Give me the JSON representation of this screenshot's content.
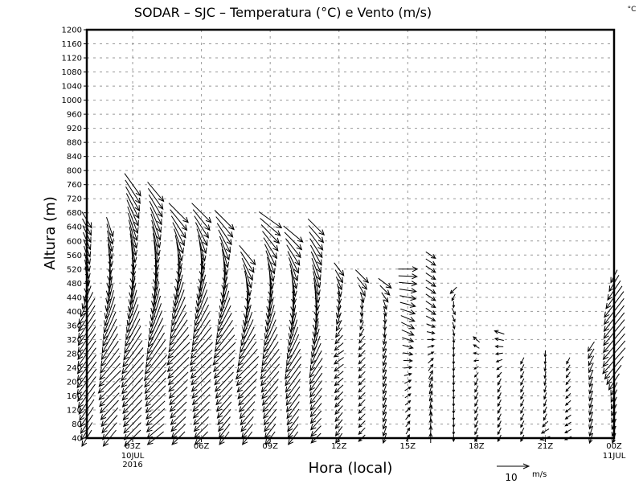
{
  "chart_data": {
    "type": "vector",
    "title": "SODAR – SJC – Temperatura (°C) e Vento (m/s)",
    "unit_label": "°C",
    "xlabel": "Hora (local)",
    "ylabel": "Altura (m)",
    "xlim_hours": [
      1,
      24
    ],
    "ylim": [
      40,
      1200
    ],
    "grid": true,
    "yticks": [
      40,
      80,
      120,
      160,
      200,
      240,
      280,
      320,
      360,
      400,
      440,
      480,
      520,
      560,
      600,
      640,
      680,
      720,
      760,
      800,
      840,
      880,
      920,
      960,
      1000,
      1040,
      1080,
      1120,
      1160,
      1200
    ],
    "xticks": [
      {
        "hour": 3,
        "label": "03Z",
        "sub1": "10JUL",
        "sub2": "2016"
      },
      {
        "hour": 6,
        "label": "06Z"
      },
      {
        "hour": 9,
        "label": "09Z"
      },
      {
        "hour": 12,
        "label": "12Z"
      },
      {
        "hour": 15,
        "label": "15Z"
      },
      {
        "hour": 18,
        "label": "18Z"
      },
      {
        "hour": 21,
        "label": "21Z"
      },
      {
        "hour": 24,
        "label": "00Z",
        "sub1": "11JUL"
      }
    ],
    "legend": {
      "value": "10",
      "unit": "m/s",
      "reference_speed": 10
    },
    "level_step_m": 20,
    "columns": [
      {
        "hour": 1,
        "top": 660,
        "profile": [
          [
            40,
            -3,
            -5
          ],
          [
            200,
            -6,
            -8
          ],
          [
            400,
            -5,
            -8
          ],
          [
            500,
            1,
            -6
          ],
          [
            660,
            3,
            -5
          ]
        ]
      },
      {
        "hour": 2,
        "top": 640,
        "profile": [
          [
            40,
            -4,
            -5
          ],
          [
            200,
            -7,
            -7
          ],
          [
            400,
            -3,
            -9
          ],
          [
            560,
            1,
            -7
          ],
          [
            640,
            2,
            -6
          ]
        ]
      },
      {
        "hour": 3,
        "top": 760,
        "profile": [
          [
            40,
            -5,
            -5
          ],
          [
            240,
            -7,
            -8
          ],
          [
            440,
            -2,
            -9
          ],
          [
            600,
            2,
            -9
          ],
          [
            760,
            5,
            -7
          ]
        ]
      },
      {
        "hour": 4,
        "top": 740,
        "profile": [
          [
            40,
            -5,
            -4
          ],
          [
            240,
            -7,
            -8
          ],
          [
            440,
            -2,
            -10
          ],
          [
            600,
            2,
            -9
          ],
          [
            740,
            5,
            -6
          ]
        ]
      },
      {
        "hour": 5,
        "top": 680,
        "profile": [
          [
            40,
            -4,
            -4
          ],
          [
            280,
            -7,
            -7
          ],
          [
            480,
            -2,
            -10
          ],
          [
            680,
            6,
            -6
          ]
        ]
      },
      {
        "hour": 6,
        "top": 680,
        "profile": [
          [
            40,
            -4,
            -4
          ],
          [
            280,
            -7,
            -7
          ],
          [
            480,
            -2,
            -10
          ],
          [
            680,
            6,
            -6
          ]
        ]
      },
      {
        "hour": 7,
        "top": 660,
        "profile": [
          [
            40,
            -3,
            -4
          ],
          [
            280,
            -7,
            -7
          ],
          [
            480,
            -1,
            -9
          ],
          [
            660,
            6,
            -6
          ]
        ]
      },
      {
        "hour": 8,
        "top": 560,
        "profile": [
          [
            40,
            -3,
            -4
          ],
          [
            240,
            -7,
            -7
          ],
          [
            420,
            -1,
            -9
          ],
          [
            560,
            5,
            -6
          ]
        ]
      },
      {
        "hour": 9,
        "top": 660,
        "profile": [
          [
            40,
            -3,
            -4
          ],
          [
            240,
            -6,
            -7
          ],
          [
            440,
            -1,
            -9
          ],
          [
            660,
            7,
            -5
          ]
        ]
      },
      {
        "hour": 10,
        "top": 620,
        "profile": [
          [
            40,
            -3,
            -4
          ],
          [
            240,
            -5,
            -7
          ],
          [
            440,
            0,
            -9
          ],
          [
            620,
            6,
            -5
          ]
        ]
      },
      {
        "hour": 11,
        "top": 640,
        "profile": [
          [
            40,
            -3,
            -3
          ],
          [
            240,
            -4,
            -6
          ],
          [
            440,
            1,
            -8
          ],
          [
            640,
            5,
            -5
          ]
        ]
      },
      {
        "hour": 12,
        "top": 520,
        "profile": [
          [
            40,
            -2,
            -3
          ],
          [
            280,
            -3,
            -2
          ],
          [
            400,
            -1,
            -4
          ],
          [
            520,
            3,
            -4
          ]
        ]
      },
      {
        "hour": 13,
        "top": 500,
        "profile": [
          [
            40,
            -2,
            -2
          ],
          [
            300,
            -2,
            -2
          ],
          [
            420,
            0,
            -3
          ],
          [
            500,
            4,
            -4
          ]
        ]
      },
      {
        "hour": 14,
        "top": 480,
        "profile": [
          [
            40,
            -1,
            -3
          ],
          [
            300,
            -1,
            -3
          ],
          [
            420,
            1,
            -3
          ],
          [
            480,
            4,
            -3
          ]
        ]
      },
      {
        "hour": 15,
        "top": 520,
        "profile": [
          [
            40,
            1,
            2
          ],
          [
            200,
            2,
            1
          ],
          [
            360,
            4,
            -2
          ],
          [
            520,
            6,
            0
          ]
        ]
      },
      {
        "hour": 16,
        "top": 560,
        "profile": [
          [
            40,
            0,
            3
          ],
          [
            200,
            1,
            3
          ],
          [
            400,
            3,
            -2
          ],
          [
            560,
            3,
            -2
          ]
        ]
      },
      {
        "hour": 17,
        "top": 460,
        "profile": [
          [
            40,
            0,
            -2
          ],
          [
            300,
            0,
            -2
          ],
          [
            400,
            1,
            -2
          ],
          [
            460,
            -2,
            -2
          ]
        ]
      },
      {
        "hour": 18,
        "top": 330,
        "profile": [
          [
            40,
            -1,
            -2
          ],
          [
            200,
            -1,
            -2
          ],
          [
            330,
            -2,
            2
          ]
        ]
      },
      {
        "hour": 19,
        "top": 340,
        "profile": [
          [
            40,
            -1,
            -2
          ],
          [
            200,
            -1,
            -2
          ],
          [
            340,
            -3,
            1
          ]
        ]
      },
      {
        "hour": 20,
        "top": 260,
        "profile": [
          [
            40,
            -1,
            -2
          ],
          [
            260,
            -1,
            -2
          ]
        ]
      },
      {
        "hour": 21,
        "top": 290,
        "profile": [
          [
            40,
            -3,
            -1
          ],
          [
            100,
            -1,
            -2
          ],
          [
            290,
            0,
            -2
          ]
        ]
      },
      {
        "hour": 22,
        "top": 270,
        "profile": [
          [
            40,
            -2,
            -1
          ],
          [
            270,
            -1,
            -2
          ]
        ]
      },
      {
        "hour": 23,
        "top": 300,
        "profile": [
          [
            40,
            -1,
            -3
          ],
          [
            200,
            -1,
            -3
          ],
          [
            300,
            -2,
            -3
          ]
        ]
      },
      {
        "hour": 24,
        "top": 500,
        "profile": [
          [
            40,
            -1,
            -3
          ],
          [
            180,
            -2,
            -4
          ],
          [
            260,
            -7,
            -8
          ],
          [
            420,
            -6,
            -8
          ],
          [
            500,
            -2,
            -4
          ]
        ]
      }
    ]
  }
}
